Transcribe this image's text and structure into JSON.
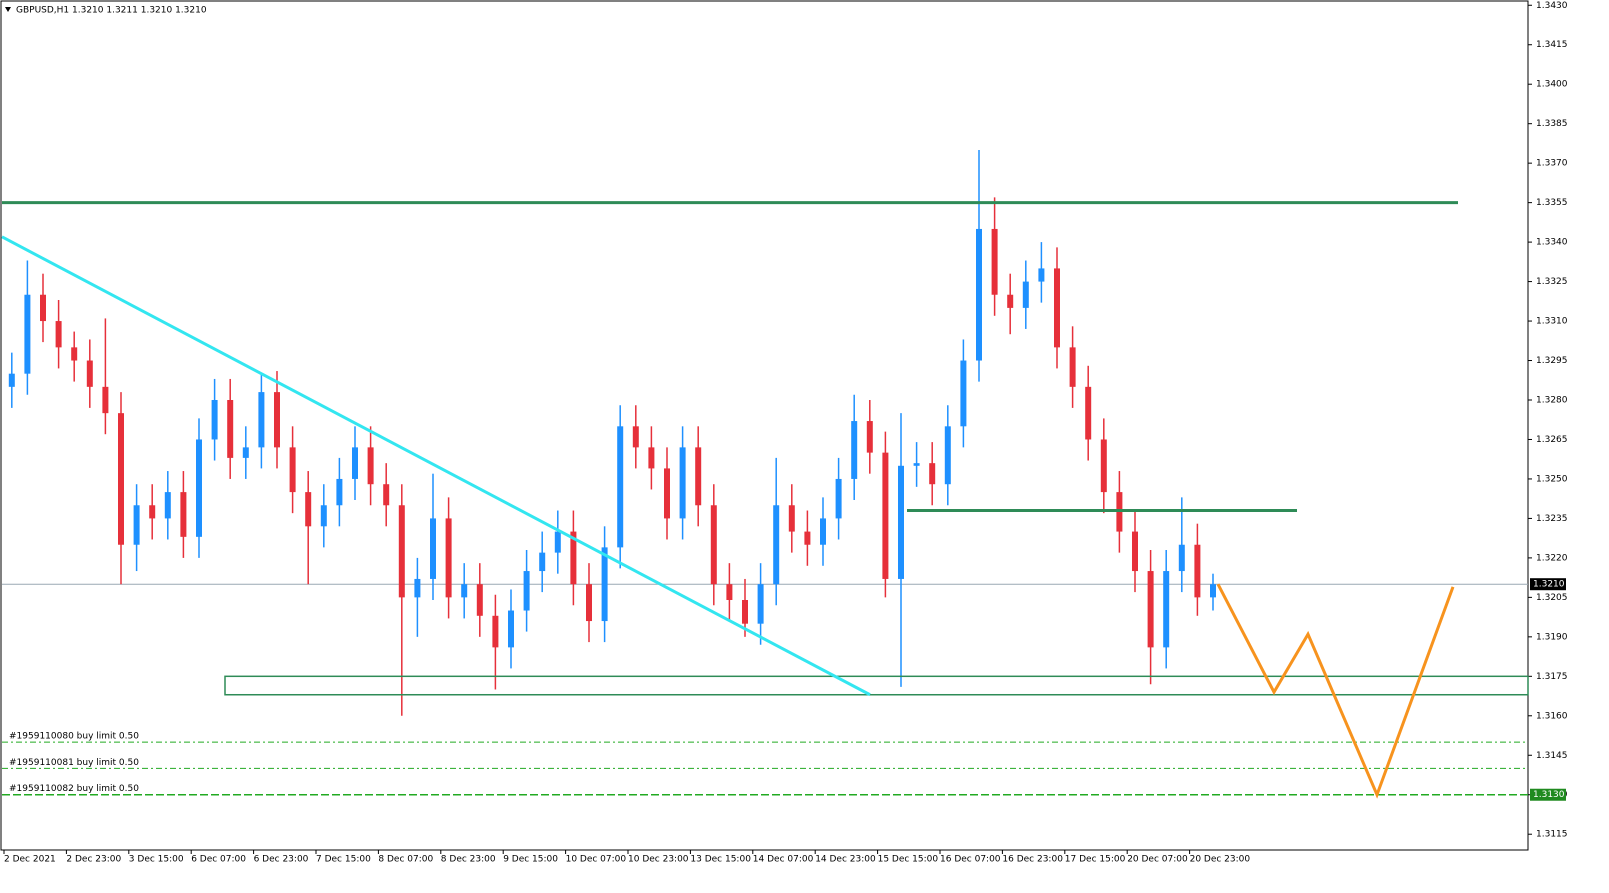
{
  "chart_data": {
    "type": "candlestick",
    "title": "GBPUSD,H1  1.3210 1.3211 1.3210 1.3210",
    "categories": [
      "2 Dec 2021",
      null,
      null,
      null,
      "2 Dec 23:00",
      null,
      null,
      null,
      "3 Dec 15:00",
      null,
      null,
      null,
      "6 Dec 07:00",
      null,
      null,
      null,
      "6 Dec 23:00",
      null,
      null,
      null,
      "7 Dec 15:00",
      null,
      null,
      null,
      "8 Dec 07:00",
      null,
      null,
      null,
      "8 Dec 23:00",
      null,
      null,
      null,
      "9 Dec 15:00",
      null,
      null,
      null,
      "10 Dec 07:00",
      null,
      null,
      null,
      "10 Dec 23:00",
      null,
      null,
      null,
      "13 Dec 15:00",
      null,
      null,
      null,
      "14 Dec 07:00",
      null,
      null,
      null,
      "14 Dec 23:00",
      null,
      null,
      null,
      "15 Dec 15:00",
      null,
      null,
      null,
      "16 Dec 07:00",
      null,
      null,
      null,
      "16 Dec 23:00",
      null,
      null,
      null,
      "17 Dec 15:00",
      null,
      null,
      null,
      "20 Dec 07:00",
      null,
      null,
      null,
      "20 Dec 23:00",
      null
    ],
    "ohlc": [
      [
        1.3285,
        1.3298,
        1.3277,
        1.329
      ],
      [
        1.329,
        1.3333,
        1.3282,
        1.332
      ],
      [
        1.332,
        1.3328,
        1.3302,
        1.331
      ],
      [
        1.331,
        1.3318,
        1.3292,
        1.33
      ],
      [
        1.33,
        1.3306,
        1.3287,
        1.3295
      ],
      [
        1.3295,
        1.3303,
        1.3277,
        1.3285
      ],
      [
        1.3285,
        1.3311,
        1.3267,
        1.3275
      ],
      [
        1.3275,
        1.3283,
        1.321,
        1.3225
      ],
      [
        1.3225,
        1.3248,
        1.3215,
        1.324
      ],
      [
        1.324,
        1.3248,
        1.3227,
        1.3235
      ],
      [
        1.3235,
        1.3253,
        1.3227,
        1.3245
      ],
      [
        1.3245,
        1.3253,
        1.322,
        1.3228
      ],
      [
        1.3228,
        1.3273,
        1.322,
        1.3265
      ],
      [
        1.3265,
        1.3288,
        1.3257,
        1.328
      ],
      [
        1.328,
        1.3288,
        1.325,
        1.3258
      ],
      [
        1.3258,
        1.327,
        1.325,
        1.3262
      ],
      [
        1.3262,
        1.329,
        1.3254,
        1.3283
      ],
      [
        1.3283,
        1.3291,
        1.3254,
        1.3262
      ],
      [
        1.3262,
        1.327,
        1.3237,
        1.3245
      ],
      [
        1.3245,
        1.3253,
        1.321,
        1.3232
      ],
      [
        1.3232,
        1.3248,
        1.3224,
        1.324
      ],
      [
        1.324,
        1.3258,
        1.3232,
        1.325
      ],
      [
        1.325,
        1.327,
        1.3242,
        1.3262
      ],
      [
        1.3262,
        1.327,
        1.324,
        1.3248
      ],
      [
        1.3248,
        1.3256,
        1.3232,
        1.324
      ],
      [
        1.324,
        1.3248,
        1.316,
        1.3205
      ],
      [
        1.3205,
        1.322,
        1.319,
        1.3212
      ],
      [
        1.3212,
        1.3252,
        1.3204,
        1.3235
      ],
      [
        1.3235,
        1.3243,
        1.3197,
        1.3205
      ],
      [
        1.3205,
        1.3218,
        1.3197,
        1.321
      ],
      [
        1.321,
        1.3218,
        1.319,
        1.3198
      ],
      [
        1.3198,
        1.3206,
        1.317,
        1.3186
      ],
      [
        1.3186,
        1.3208,
        1.3178,
        1.32
      ],
      [
        1.32,
        1.3223,
        1.3192,
        1.3215
      ],
      [
        1.3215,
        1.323,
        1.3207,
        1.3222
      ],
      [
        1.3222,
        1.3238,
        1.3214,
        1.323
      ],
      [
        1.323,
        1.3238,
        1.3202,
        1.321
      ],
      [
        1.321,
        1.3218,
        1.3188,
        1.3196
      ],
      [
        1.3196,
        1.3232,
        1.3188,
        1.3224
      ],
      [
        1.3224,
        1.3278,
        1.3216,
        1.327
      ],
      [
        1.327,
        1.3278,
        1.3254,
        1.3262
      ],
      [
        1.3262,
        1.327,
        1.3246,
        1.3254
      ],
      [
        1.3254,
        1.3262,
        1.3227,
        1.3235
      ],
      [
        1.3235,
        1.327,
        1.3227,
        1.3262
      ],
      [
        1.3262,
        1.327,
        1.3232,
        1.324
      ],
      [
        1.324,
        1.3248,
        1.3202,
        1.321
      ],
      [
        1.321,
        1.3218,
        1.3196,
        1.3204
      ],
      [
        1.3204,
        1.3212,
        1.319,
        1.3195
      ],
      [
        1.3195,
        1.3218,
        1.3187,
        1.321
      ],
      [
        1.321,
        1.3258,
        1.3202,
        1.324
      ],
      [
        1.324,
        1.3248,
        1.3222,
        1.323
      ],
      [
        1.323,
        1.3238,
        1.3217,
        1.3225
      ],
      [
        1.3225,
        1.3243,
        1.3217,
        1.3235
      ],
      [
        1.3235,
        1.3258,
        1.3227,
        1.325
      ],
      [
        1.325,
        1.3282,
        1.3242,
        1.3272
      ],
      [
        1.3272,
        1.328,
        1.3252,
        1.326
      ],
      [
        1.326,
        1.3268,
        1.3205,
        1.3212
      ],
      [
        1.3212,
        1.3275,
        1.3171,
        1.3255
      ],
      [
        1.3255,
        1.3264,
        1.3247,
        1.3256
      ],
      [
        1.3256,
        1.3264,
        1.324,
        1.3248
      ],
      [
        1.3248,
        1.3278,
        1.324,
        1.327
      ],
      [
        1.327,
        1.3303,
        1.3262,
        1.3295
      ],
      [
        1.3295,
        1.3375,
        1.3287,
        1.3345
      ],
      [
        1.3345,
        1.3357,
        1.3312,
        1.332
      ],
      [
        1.332,
        1.3328,
        1.3305,
        1.3315
      ],
      [
        1.3315,
        1.3333,
        1.3307,
        1.3325
      ],
      [
        1.3325,
        1.334,
        1.3317,
        1.333
      ],
      [
        1.333,
        1.3338,
        1.3292,
        1.33
      ],
      [
        1.33,
        1.3308,
        1.3277,
        1.3285
      ],
      [
        1.3285,
        1.3293,
        1.3257,
        1.3265
      ],
      [
        1.3265,
        1.3273,
        1.3237,
        1.3245
      ],
      [
        1.3245,
        1.3253,
        1.3222,
        1.323
      ],
      [
        1.323,
        1.3238,
        1.3207,
        1.3215
      ],
      [
        1.3215,
        1.3223,
        1.3172,
        1.3186
      ],
      [
        1.3186,
        1.3223,
        1.3178,
        1.3215
      ],
      [
        1.3215,
        1.3243,
        1.3207,
        1.3225
      ],
      [
        1.3225,
        1.3233,
        1.3198,
        1.3205
      ],
      [
        1.3205,
        1.3214,
        1.32,
        1.321
      ]
    ],
    "up_color": "#1e90ff",
    "down_color": "#e6303a",
    "ylim": [
      1.3109,
      1.3432
    ],
    "yticks": [
      {
        "value": 1.343,
        "label": "1.3430"
      },
      1.3415,
      {
        "value": 1.34,
        "label": "1.3400"
      },
      1.3385,
      {
        "value": 1.337,
        "label": "1.3370"
      },
      1.3355,
      {
        "value": 1.334,
        "label": "1.3340"
      },
      1.3325,
      {
        "value": 1.331,
        "label": "1.3310"
      },
      1.3295,
      {
        "value": 1.328,
        "label": "1.3280"
      },
      1.3265,
      {
        "value": 1.325,
        "label": "1.3250"
      },
      1.3235,
      {
        "value": 1.322,
        "label": "1.3220"
      },
      1.3205,
      {
        "value": 1.319,
        "label": "1.3190"
      },
      1.3175,
      {
        "value": 1.316,
        "label": "1.3160"
      },
      1.3145,
      {
        "value": 1.313,
        "label": "1.3130"
      },
      1.3115
    ],
    "resistance": 1.3355,
    "mid_level": 1.3238,
    "zone": [
      1.3175,
      1.3168
    ],
    "trendline": [
      1.3342,
      1.3168
    ],
    "projection": [
      1.321,
      1.3169,
      1.3191,
      1.313,
      1.3209
    ],
    "current_price": {
      "value": 1.321,
      "label": "1.3210"
    },
    "orders": [
      {
        "label": "#1959110080 buy limit 0.50",
        "value": 1.315
      },
      {
        "label": "#1959110081 buy limit 0.50",
        "value": 1.314
      },
      {
        "label": "#1959110082 buy limit 0.50",
        "value": 1.313
      }
    ],
    "order_price": {
      "value": 1.313,
      "label": "1.3130"
    }
  }
}
